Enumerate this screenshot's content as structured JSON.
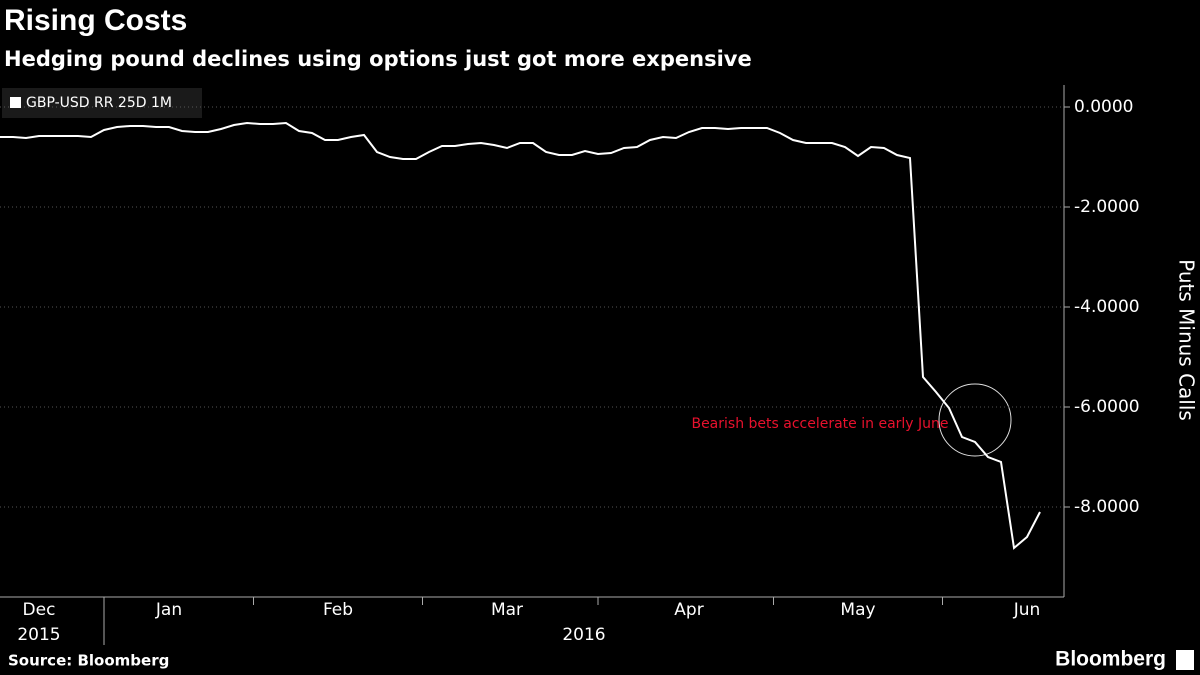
{
  "chart_data": {
    "type": "line",
    "title": "Rising Costs",
    "subtitle": "Hedging pound declines using options just got more expensive",
    "y_label": "Puts Minus Calls",
    "source": "Source: Bloomberg",
    "brand": "Bloomberg",
    "annotation": "Bearish bets accelerate in early June",
    "year_labels": [
      "2015",
      "2016"
    ],
    "categories": [
      null,
      null,
      null,
      "Dec",
      null,
      null,
      null,
      null,
      null,
      null,
      null,
      null,
      null,
      "Jan",
      null,
      null,
      null,
      null,
      null,
      null,
      null,
      null,
      null,
      null,
      null,
      null,
      "Feb",
      null,
      null,
      null,
      null,
      null,
      null,
      null,
      null,
      null,
      null,
      null,
      null,
      "Mar",
      null,
      null,
      null,
      null,
      null,
      null,
      null,
      null,
      null,
      null,
      null,
      null,
      null,
      "Apr",
      null,
      null,
      null,
      null,
      null,
      null,
      null,
      null,
      null,
      null,
      null,
      null,
      "May",
      null,
      null,
      null,
      null,
      null,
      null,
      null,
      null,
      null,
      null,
      null,
      null,
      "Jun",
      null
    ],
    "series": [
      {
        "name": "GBP-USD RR 25D 1M",
        "color": "#ffffff",
        "values": [
          -0.6,
          -0.6,
          -0.62,
          -0.58,
          -0.58,
          -0.58,
          -0.58,
          -0.6,
          -0.46,
          -0.4,
          -0.38,
          -0.38,
          -0.4,
          -0.4,
          -0.48,
          -0.5,
          -0.5,
          -0.44,
          -0.36,
          -0.32,
          -0.34,
          -0.34,
          -0.32,
          -0.48,
          -0.52,
          -0.66,
          -0.66,
          -0.6,
          -0.56,
          -0.9,
          -1.0,
          -1.04,
          -1.04,
          -0.9,
          -0.78,
          -0.78,
          -0.74,
          -0.72,
          -0.76,
          -0.82,
          -0.72,
          -0.72,
          -0.9,
          -0.96,
          -0.96,
          -0.88,
          -0.94,
          -0.92,
          -0.82,
          -0.8,
          -0.66,
          -0.6,
          -0.62,
          -0.5,
          -0.42,
          -0.42,
          -0.44,
          -0.42,
          -0.42,
          -0.42,
          -0.52,
          -0.66,
          -0.72,
          -0.72,
          -0.72,
          -0.8,
          -0.98,
          -0.8,
          -0.82,
          -0.96,
          -1.02,
          -5.4,
          -5.7,
          -6.02,
          -6.6,
          -6.7,
          -7.0,
          -7.1,
          -8.82,
          -8.6,
          -8.1
        ]
      }
    ],
    "ylim": [
      -9.8,
      0.44
    ],
    "yticks": [
      {
        "value": 0,
        "label": "0.0000"
      },
      {
        "value": -2,
        "label": "-2.0000"
      },
      {
        "value": -4,
        "label": "-4.0000"
      },
      {
        "value": -6,
        "label": "-6.0000"
      },
      {
        "value": -8,
        "label": "-8.0000"
      }
    ],
    "grid": true,
    "legend": "upper left"
  }
}
